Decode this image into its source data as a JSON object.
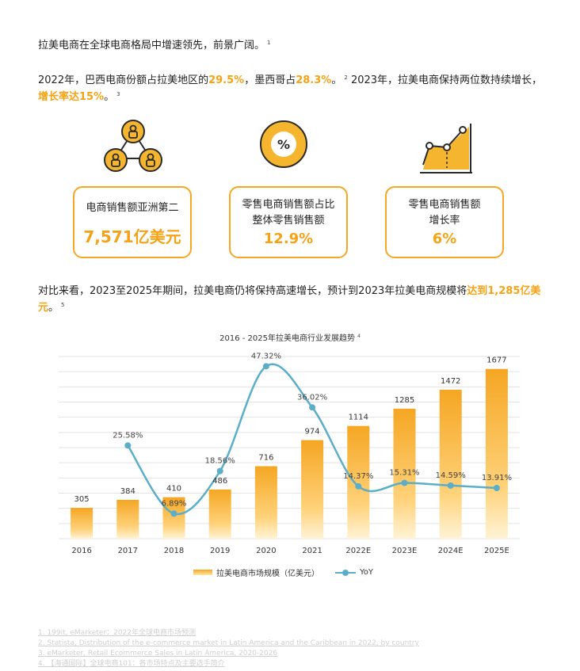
{
  "para1": {
    "text": "拉美电商在全球电商格局中增速领先，前景广阔。",
    "sup": "1"
  },
  "para2": {
    "t1": "2022年，巴西电商份额占拉美地区的",
    "h1": "29.5%",
    "t2": "，墨西哥占",
    "h2": "28.3%",
    "t3": "。",
    "sup1": "2",
    "t4": " 2023年，拉美电商保持两位数持续增长，",
    "h3": "增长率达15%",
    "t5": "。",
    "sup2": "3"
  },
  "stats": [
    {
      "label_line1": "电商销售额亚洲第二",
      "label_line2": "",
      "value": "7,571亿美元"
    },
    {
      "label_line1": "零售电商销售额占比",
      "label_line2": "整体零售销售额",
      "value": "12.9%"
    },
    {
      "label_line1": "零售电商销售额",
      "label_line2": "增长率",
      "value": "6%"
    }
  ],
  "para3": {
    "t1": "对比来看，2023至2025年期间，拉美电商仍将保持高速增长，预计到2023年拉美电商规模将",
    "h1": "达到1,285亿美元",
    "t2": "。",
    "sup": "5"
  },
  "chart_data": {
    "type": "bar",
    "title": "2016 - 2025年拉美电商行业发展趋势",
    "title_sup": "4",
    "categories": [
      "2016",
      "2017",
      "2018",
      "2019",
      "2020",
      "2021",
      "2022E",
      "2023E",
      "2024E",
      "2025E"
    ],
    "series": [
      {
        "name": "拉美电商市场规模（亿美元）",
        "type": "bar",
        "values": [
          305,
          384,
          410,
          486,
          716,
          974,
          1114,
          1285,
          1472,
          1677
        ]
      },
      {
        "name": "YoY",
        "type": "line",
        "values": [
          null,
          25.58,
          6.89,
          18.56,
          47.32,
          36.02,
          14.37,
          15.31,
          14.59,
          13.91
        ]
      }
    ],
    "yoy_labels": [
      "",
      "25.58%",
      "6.89%",
      "18.56%",
      "47.32%",
      "36.02%",
      "14.37%",
      "15.31%",
      "14.59%",
      "13.91%"
    ],
    "bar_ylim": [
      0,
      1800
    ],
    "line_ylim": [
      0,
      50
    ],
    "grid": true,
    "legend_position": "bottom",
    "colors": {
      "bar_top": "#F5A623",
      "bar_bottom": "#FFF3D6",
      "line": "#5BAEC7",
      "highlight": "#F5A316"
    }
  },
  "references": [
    "1. 199it, eMarketer：2022年全球电商市场预测",
    "2. Statista, Distribution of the e-commerce market in Latin America and the Caribbean in 2022, by country",
    "3. eMarketer, Retail Ecommerce Sales in Latin America, 2020-2026",
    "4. 【海通国际】全球电商101：各市场特点及主要选手简介"
  ],
  "icons": [
    "people-network-icon",
    "percent-badge-icon",
    "growth-chart-icon"
  ]
}
